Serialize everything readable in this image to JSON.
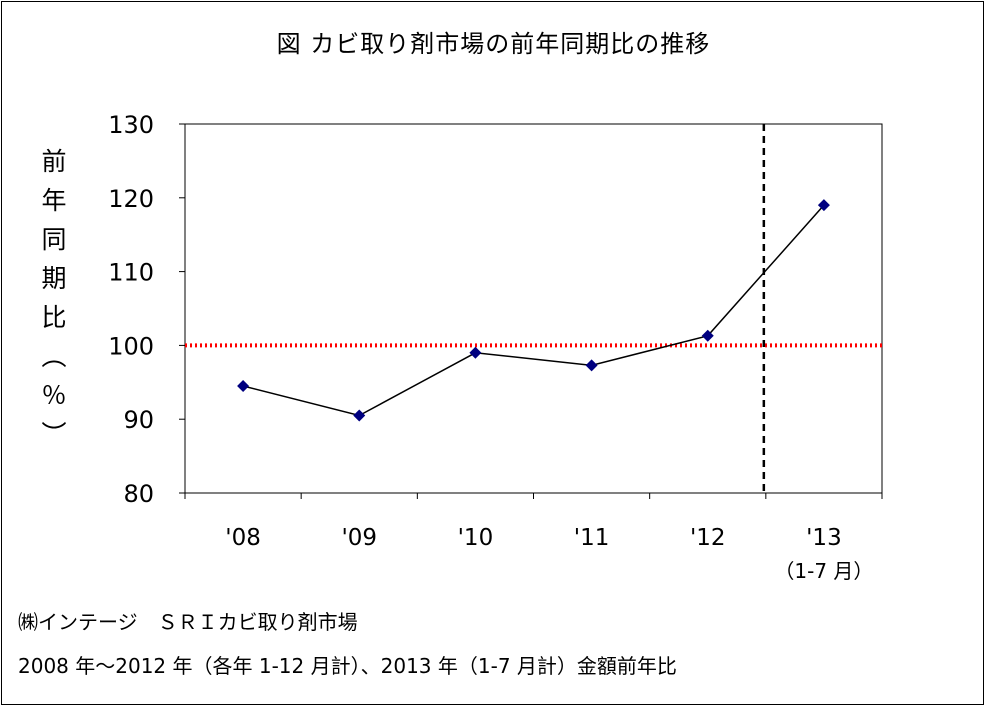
{
  "title": "図 カビ取り剤市場の前年同期比の推移",
  "chart_data": {
    "type": "line",
    "title": "図 カビ取り剤市場の前年同期比の推移",
    "ylabel": "前年同期比（％）",
    "ylabel_chars": [
      "前",
      "年",
      "同",
      "期",
      "比",
      "︵",
      "％",
      "︶"
    ],
    "xlabel": "",
    "categories": [
      "'08",
      "'09",
      "'10",
      "'11",
      "'12",
      "'13"
    ],
    "category_sublabels": [
      "",
      "",
      "",
      "",
      "",
      "（1-7 月）"
    ],
    "series": [
      {
        "values": [
          94.5,
          90.5,
          99,
          97.3,
          101.3,
          119
        ],
        "color": "#000080"
      }
    ],
    "ylim": [
      80,
      130
    ],
    "yticks": [
      80,
      90,
      100,
      110,
      120,
      130
    ],
    "reference_line": {
      "y": 100,
      "color": "#ff0000",
      "style": "dotted"
    },
    "divider": {
      "between": [
        "'12",
        "'13"
      ],
      "style": "dashed",
      "color": "#000000"
    },
    "grid": false,
    "legend": "none"
  },
  "notes": [
    "㈱インテージ　ＳＲＩカビ取り剤市場",
    "2008 年～2012 年（各年 1-12 月計）、2013 年（1-7 月計）金額前年比"
  ]
}
